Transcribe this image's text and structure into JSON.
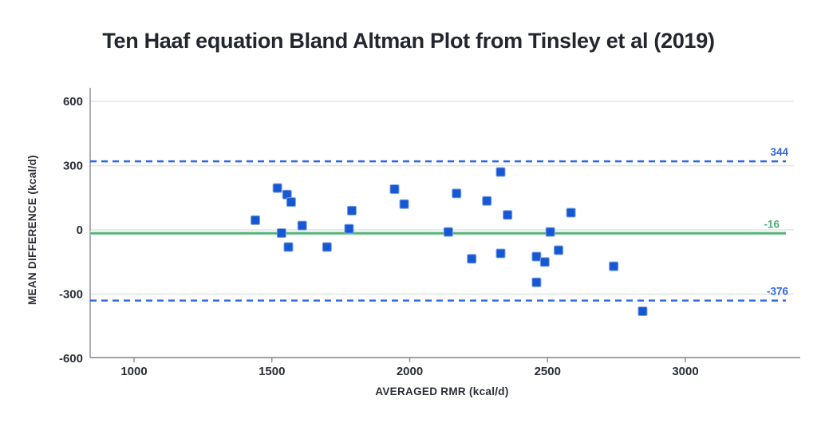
{
  "page": {
    "background": "#ffffff"
  },
  "chart_data": {
    "type": "scatter",
    "title": "Ten Haaf equation Bland Altman Plot from Tinsley et al (2019)",
    "xlabel": "AVERAGED RMR (kcal/d)",
    "ylabel": "MEAN DIFFERENCE (kcal/d)",
    "xticks": [
      1000,
      1500,
      2000,
      2500,
      3000
    ],
    "yticks": [
      600,
      300,
      0,
      -300,
      -600
    ],
    "xlim": [
      840,
      3390
    ],
    "ylim": [
      -600,
      600
    ],
    "grid": "horizontal-only",
    "legend": "none",
    "marker": {
      "shape": "square",
      "size": 11,
      "fill": "#1757d1",
      "stroke": "#7aa3ea"
    },
    "points": [
      [
        1440,
        45
      ],
      [
        1520,
        195
      ],
      [
        1535,
        -15
      ],
      [
        1555,
        165
      ],
      [
        1560,
        -80
      ],
      [
        1570,
        130
      ],
      [
        1610,
        20
      ],
      [
        1700,
        -80
      ],
      [
        1780,
        5
      ],
      [
        1790,
        90
      ],
      [
        1945,
        190
      ],
      [
        1980,
        120
      ],
      [
        2140,
        -10
      ],
      [
        2170,
        170
      ],
      [
        2225,
        -135
      ],
      [
        2280,
        135
      ],
      [
        2330,
        270
      ],
      [
        2330,
        -110
      ],
      [
        2355,
        70
      ],
      [
        2460,
        -125
      ],
      [
        2460,
        -245
      ],
      [
        2490,
        -150
      ],
      [
        2510,
        -10
      ],
      [
        2540,
        -95
      ],
      [
        2585,
        80
      ],
      [
        2740,
        -170
      ],
      [
        2845,
        -380
      ]
    ],
    "reference_lines": [
      {
        "id": "upper-limit-of-agreement",
        "label": "344",
        "value": 344,
        "line_style": "dashed",
        "color": "#2e66e5",
        "label_color": "#2e66e5",
        "position_value": 320
      },
      {
        "id": "mean-difference",
        "label": "-16",
        "value": -16,
        "line_style": "solid",
        "color": "#4fae73",
        "label_color": "#4fae73",
        "position_value": -16
      },
      {
        "id": "lower-limit-of-agreement",
        "label": "-376",
        "value": -376,
        "line_style": "dashed",
        "color": "#2e66e5",
        "label_color": "#2e66e5",
        "position_value": -330
      }
    ]
  },
  "colors": {
    "title_text": "#23262e",
    "tick_text": "#2b2e35",
    "axis_line": "#8f949b",
    "gridline": "#e3e4e7",
    "point_blue": "#1757d1",
    "limit_blue": "#2e66e5",
    "mean_green": "#4fae73",
    "background": "#ffffff"
  }
}
